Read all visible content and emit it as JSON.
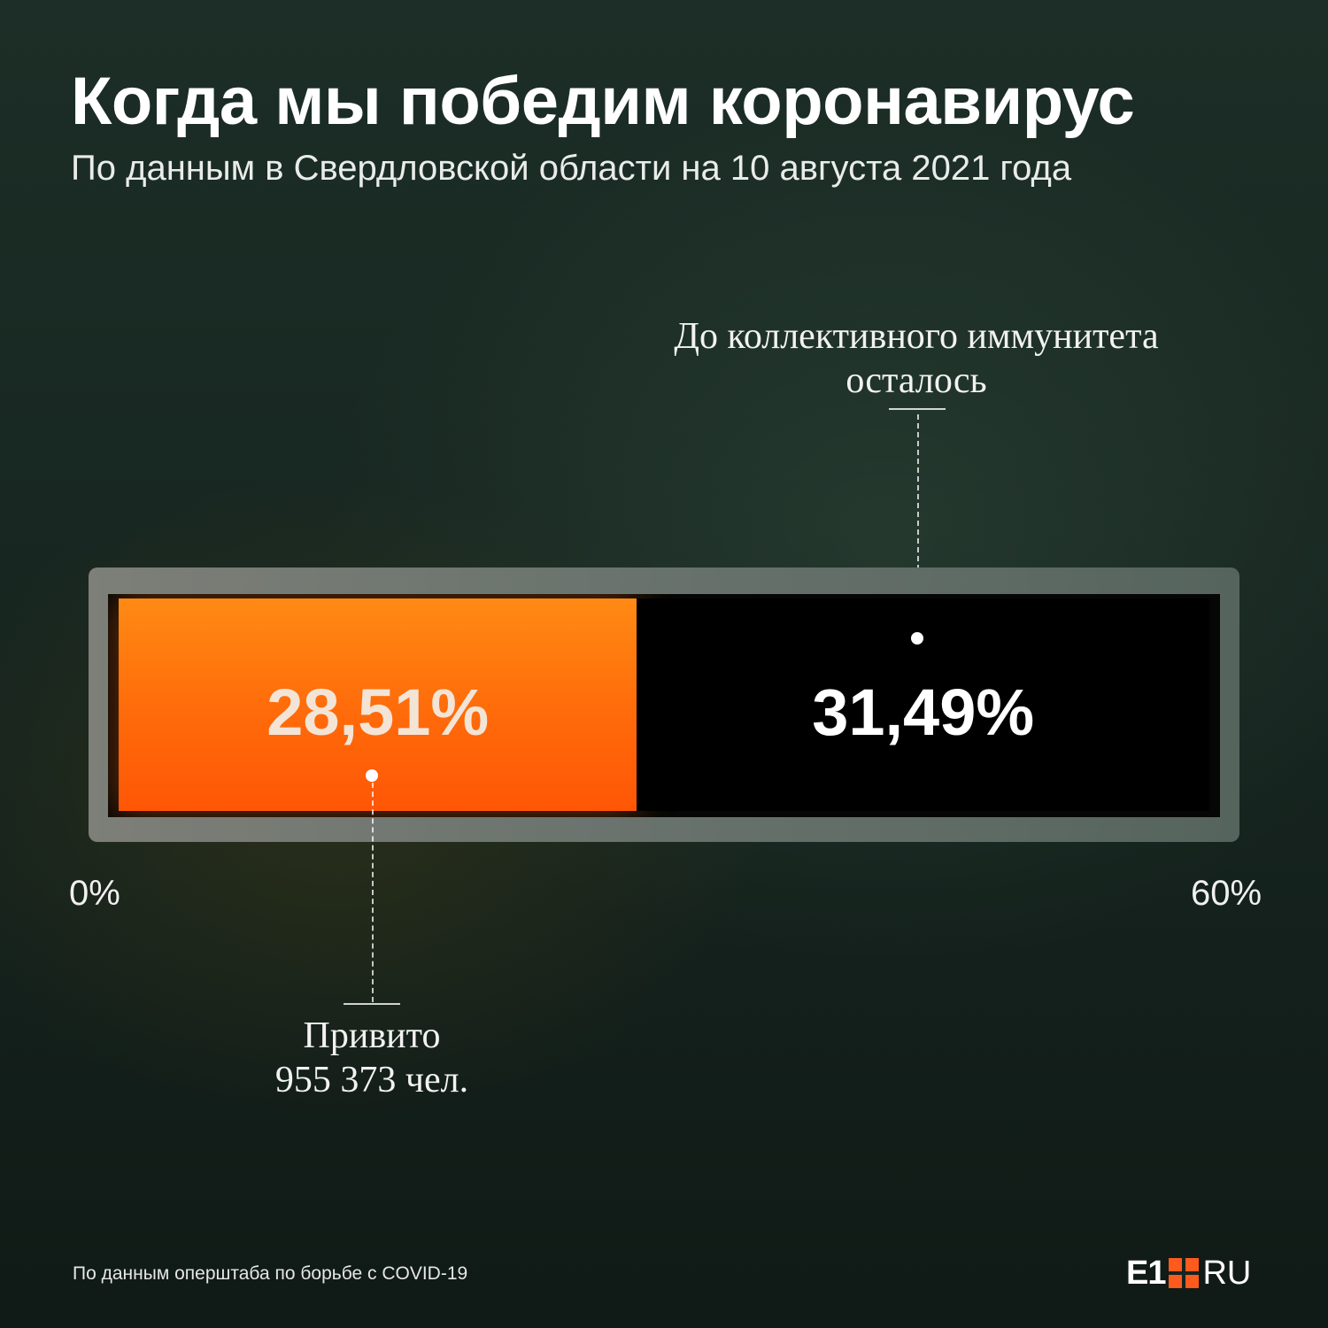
{
  "title": "Когда мы победим коронавирус",
  "subtitle": "По данным в Свердловской области на 10 августа 2021 года",
  "chart_data": {
    "type": "bar",
    "orientation": "horizontal-stacked",
    "xlim": [
      0,
      60
    ],
    "tick_labels": [
      "0%",
      "60%"
    ],
    "segments": [
      {
        "label": "28,51%",
        "value": 28.51,
        "color": "#ff6a0a"
      },
      {
        "label": "31,49%",
        "value": 31.49,
        "color": "#000000"
      }
    ],
    "annotations": {
      "remaining": [
        "До коллективного иммунитета",
        "осталось"
      ],
      "vaccinated": [
        "Привито",
        "955 373 чел."
      ]
    }
  },
  "source": "По данным оперштаба по борьбе с COVID-19",
  "logo": {
    "e1": "E1",
    "ru": "RU",
    "accent": "#ff5a1e"
  }
}
